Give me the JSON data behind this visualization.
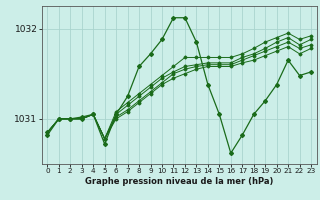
{
  "title": "Graphe pression niveau de la mer (hPa)",
  "background_color": "#cceee8",
  "grid_color": "#aad4ce",
  "line_color": "#1a6b1a",
  "xlim": [
    -0.5,
    23.5
  ],
  "ylim": [
    1030.5,
    1032.25
  ],
  "yticks": [
    1031,
    1032
  ],
  "xticks": [
    0,
    1,
    2,
    3,
    4,
    5,
    6,
    7,
    8,
    9,
    10,
    11,
    12,
    13,
    14,
    15,
    16,
    17,
    18,
    19,
    20,
    21,
    22,
    23
  ],
  "series": [
    [
      1030.85,
      1031.0,
      1031.0,
      1031.0,
      1031.05,
      1030.78,
      1031.08,
      1031.18,
      1031.28,
      1031.38,
      1031.48,
      1031.58,
      1031.68,
      1031.68,
      1031.68,
      1031.68,
      1031.68,
      1031.72,
      1031.78,
      1031.85,
      1031.9,
      1031.95,
      1031.88,
      1031.92
    ],
    [
      1030.85,
      1031.0,
      1031.0,
      1031.0,
      1031.05,
      1030.78,
      1031.05,
      1031.15,
      1031.25,
      1031.35,
      1031.45,
      1031.52,
      1031.58,
      1031.6,
      1031.62,
      1031.62,
      1031.62,
      1031.68,
      1031.72,
      1031.78,
      1031.85,
      1031.9,
      1031.82,
      1031.88
    ],
    [
      1030.85,
      1031.0,
      1031.0,
      1031.0,
      1031.05,
      1030.78,
      1031.02,
      1031.1,
      1031.2,
      1031.3,
      1031.4,
      1031.5,
      1031.55,
      1031.58,
      1031.6,
      1031.6,
      1031.6,
      1031.65,
      1031.7,
      1031.75,
      1031.8,
      1031.85,
      1031.78,
      1031.82
    ],
    [
      1030.85,
      1031.0,
      1031.0,
      1031.0,
      1031.05,
      1030.78,
      1031.0,
      1031.08,
      1031.18,
      1031.28,
      1031.38,
      1031.45,
      1031.5,
      1031.55,
      1031.58,
      1031.58,
      1031.58,
      1031.62,
      1031.65,
      1031.7,
      1031.75,
      1031.8,
      1031.72,
      1031.78
    ]
  ],
  "main_series": [
    1030.82,
    1031.0,
    1031.0,
    1031.02,
    1031.05,
    1030.72,
    1031.05,
    1031.25,
    1031.58,
    1031.72,
    1031.88,
    1032.12,
    1032.12,
    1031.85,
    1031.38,
    1031.05,
    1030.62,
    1030.82,
    1031.05,
    1031.2,
    1031.38,
    1031.65,
    1031.48,
    1031.52
  ]
}
